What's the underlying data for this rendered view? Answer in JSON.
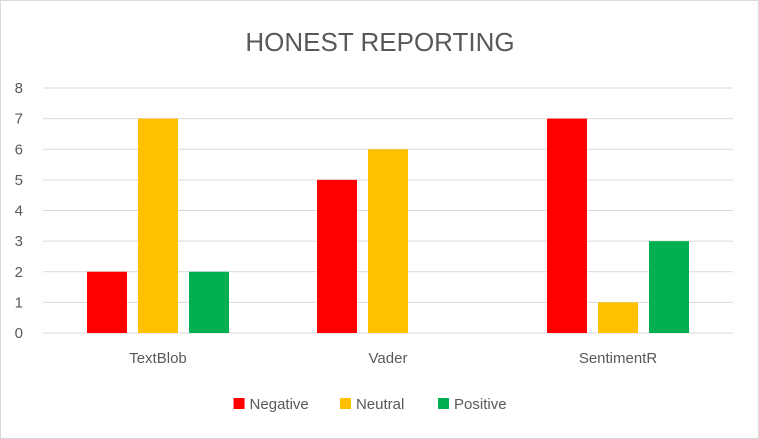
{
  "chart_data": {
    "type": "bar",
    "title": "HONEST REPORTING",
    "categories": [
      "TextBlob",
      "Vader",
      "SentimentR"
    ],
    "series": [
      {
        "name": "Negative",
        "color": "#ff0000",
        "values": [
          2,
          5,
          7
        ]
      },
      {
        "name": "Neutral",
        "color": "#ffc000",
        "values": [
          7,
          6,
          1
        ]
      },
      {
        "name": "Positive",
        "color": "#00b050",
        "values": [
          2,
          0,
          3
        ]
      }
    ],
    "ylim": [
      0,
      8
    ],
    "yticks": [
      "0",
      "1",
      "2",
      "3",
      "4",
      "5",
      "6",
      "7",
      "8"
    ],
    "grid": true,
    "legend_position": "bottom"
  }
}
